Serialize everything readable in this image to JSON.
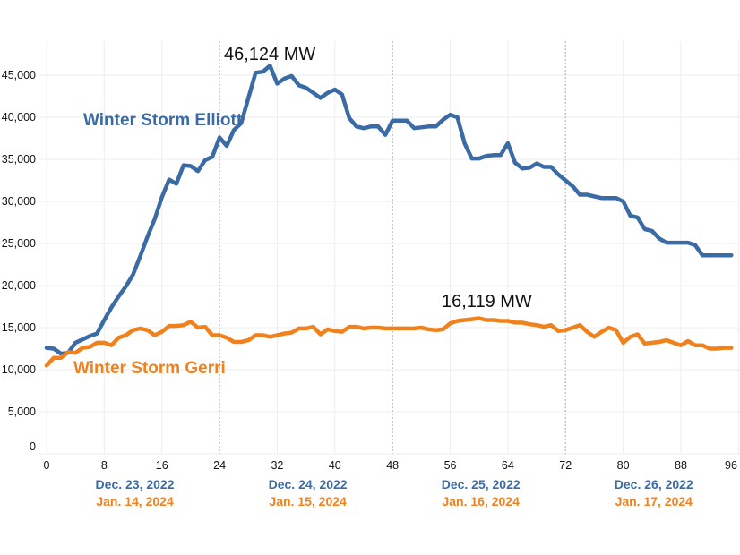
{
  "chart_data": {
    "type": "line",
    "title": "",
    "xlabel": "",
    "ylabel": "",
    "xlim": [
      0,
      96
    ],
    "ylim": [
      0,
      47000
    ],
    "x_ticks": [
      0,
      8,
      16,
      24,
      32,
      40,
      48,
      56,
      64,
      72,
      80,
      88,
      96
    ],
    "y_ticks": [
      0,
      5000,
      10000,
      15000,
      20000,
      25000,
      30000,
      35000,
      40000,
      45000
    ],
    "y_tick_labels": [
      "0",
      "5,000",
      "10,000",
      "15,000",
      "20,000",
      "25,000",
      "30,000",
      "35,000",
      "40,000",
      "45,000"
    ],
    "day_dividers": [
      24,
      48,
      72
    ],
    "grid": true,
    "legend": "inline labels",
    "day_labels": [
      {
        "center_hour": 12,
        "elliott": "Dec. 23, 2022",
        "gerri": "Jan. 14, 2024"
      },
      {
        "center_hour": 36,
        "elliott": "Dec. 24, 2022",
        "gerri": "Jan. 15, 2024"
      },
      {
        "center_hour": 60,
        "elliott": "Dec. 25, 2022",
        "gerri": "Jan. 16, 2024"
      },
      {
        "center_hour": 84,
        "elliott": "Dec. 26, 2022",
        "gerri": "Jan. 17, 2024"
      }
    ],
    "series": [
      {
        "name": "Winter Storm Elliott",
        "color": "#3a6ba5",
        "values": [
          12600,
          12500,
          11900,
          12000,
          13200,
          13600,
          14000,
          14300,
          15900,
          17400,
          18700,
          19900,
          21300,
          23500,
          25800,
          27900,
          30500,
          32600,
          32100,
          34300,
          34200,
          33600,
          34900,
          35300,
          37600,
          36600,
          38500,
          39300,
          42300,
          45300,
          45400,
          46124,
          44000,
          44600,
          44900,
          43800,
          43500,
          42900,
          42300,
          42900,
          43300,
          42700,
          39900,
          38900,
          38700,
          38900,
          38900,
          37900,
          39600,
          39600,
          39600,
          38700,
          38800,
          38900,
          38900,
          39700,
          40300,
          40000,
          36900,
          35100,
          35100,
          35400,
          35500,
          35500,
          36900,
          34600,
          33900,
          34000,
          34500,
          34100,
          34100,
          33200,
          32500,
          31800,
          30800,
          30800,
          30600,
          30400,
          30400,
          30400,
          30000,
          28300,
          28100,
          26700,
          26500,
          25600,
          25100,
          25100,
          25100,
          25100,
          24800,
          23600,
          23600,
          23600,
          23600,
          23600
        ]
      },
      {
        "name": "Winter Storm Gerri",
        "color": "#f0821e",
        "values": [
          10500,
          11400,
          11400,
          12100,
          12000,
          12600,
          12700,
          13200,
          13200,
          12900,
          13800,
          14100,
          14700,
          14900,
          14700,
          14100,
          14500,
          15200,
          15200,
          15300,
          15700,
          15000,
          15100,
          14100,
          14100,
          13800,
          13300,
          13300,
          13500,
          14100,
          14100,
          13900,
          14100,
          14300,
          14400,
          14900,
          14900,
          15100,
          14200,
          14800,
          14600,
          14500,
          15100,
          15100,
          14900,
          15000,
          15000,
          14900,
          14900,
          14900,
          14900,
          14900,
          15000,
          14800,
          14700,
          14800,
          15500,
          15800,
          15900,
          16000,
          16119,
          15900,
          15900,
          15800,
          15800,
          15600,
          15600,
          15400,
          15300,
          15100,
          15300,
          14600,
          14700,
          15000,
          15300,
          14500,
          13900,
          14500,
          15000,
          14700,
          13200,
          13900,
          14200,
          13100,
          13200,
          13300,
          13500,
          13200,
          12900,
          13400,
          12900,
          12900,
          12500,
          12500,
          12600,
          12600
        ]
      }
    ],
    "annotations": [
      {
        "text": "46,124 MW",
        "series": "Winter Storm Elliott",
        "hour": 31,
        "value": 46124
      },
      {
        "text": "16,119 MW",
        "series": "Winter Storm Gerri",
        "hour": 60,
        "value": 16119
      }
    ]
  }
}
